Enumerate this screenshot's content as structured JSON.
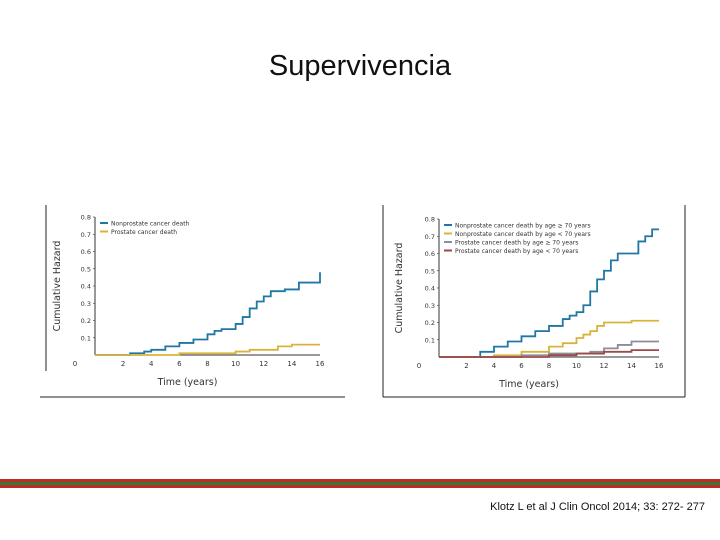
{
  "slide": {
    "title": "Supervivencia",
    "citation": "Klotz L et al J Clin Oncol 2014; 33: 272- 277"
  },
  "colors": {
    "nonprostate": "#1f77a4",
    "prostate": "#d9b33c",
    "prostate_old": "#8c8c9a",
    "prostate_young": "#9b4a4a",
    "stripe_green": "#2e7d32",
    "stripe_red": "#c62828"
  },
  "chart_data": [
    {
      "type": "line",
      "title": "",
      "xlabel": "Time (years)",
      "ylabel": "Cumulative Hazard",
      "xlim": [
        0,
        16
      ],
      "ylim": [
        0,
        0.8
      ],
      "xticks": [
        "0",
        "2",
        "4",
        "6",
        "8",
        "10",
        "12",
        "14",
        "16"
      ],
      "yticks": [
        "0.1",
        "0.2",
        "0.3",
        "0.4",
        "0.5",
        "0.6",
        "0.7",
        "0.8"
      ],
      "legend_position": "top-left",
      "series": [
        {
          "name": "Nonprostate cancer death",
          "color": "#1f77a4",
          "points": [
            [
              0,
              0
            ],
            [
              2,
              0
            ],
            [
              2.5,
              0.01
            ],
            [
              3.5,
              0.02
            ],
            [
              4,
              0.03
            ],
            [
              5,
              0.05
            ],
            [
              6,
              0.07
            ],
            [
              7,
              0.09
            ],
            [
              8,
              0.12
            ],
            [
              8.5,
              0.14
            ],
            [
              9,
              0.15
            ],
            [
              10,
              0.18
            ],
            [
              10.5,
              0.22
            ],
            [
              11,
              0.27
            ],
            [
              11.5,
              0.31
            ],
            [
              12,
              0.34
            ],
            [
              12.5,
              0.37
            ],
            [
              13,
              0.37
            ],
            [
              13.5,
              0.38
            ],
            [
              14,
              0.38
            ],
            [
              14.5,
              0.42
            ],
            [
              15.5,
              0.42
            ],
            [
              16,
              0.42
            ],
            [
              16,
              0.48
            ]
          ]
        },
        {
          "name": "Prostate cancer death",
          "color": "#d9b33c",
          "points": [
            [
              0,
              0
            ],
            [
              2,
              0
            ],
            [
              4,
              0
            ],
            [
              6,
              0.01
            ],
            [
              8,
              0.01
            ],
            [
              10,
              0.02
            ],
            [
              11,
              0.03
            ],
            [
              12,
              0.03
            ],
            [
              13,
              0.05
            ],
            [
              14,
              0.06
            ],
            [
              16,
              0.06
            ]
          ]
        }
      ]
    },
    {
      "type": "line",
      "title": "",
      "xlabel": "Time (years)",
      "ylabel": "Cumulative Hazard",
      "xlim": [
        0,
        16
      ],
      "ylim": [
        0,
        0.8
      ],
      "xticks": [
        "0",
        "2",
        "4",
        "6",
        "8",
        "10",
        "12",
        "14",
        "16"
      ],
      "yticks": [
        "0.1",
        "0.2",
        "0.3",
        "0.4",
        "0.5",
        "0.6",
        "0.7",
        "0.8"
      ],
      "legend_position": "top-left",
      "series": [
        {
          "name": "Nonprostate cancer death by age ≥ 70 years",
          "color": "#1f77a4",
          "points": [
            [
              0,
              0
            ],
            [
              2,
              0
            ],
            [
              3,
              0.03
            ],
            [
              4,
              0.06
            ],
            [
              5,
              0.09
            ],
            [
              6,
              0.12
            ],
            [
              7,
              0.15
            ],
            [
              8,
              0.18
            ],
            [
              9,
              0.22
            ],
            [
              9.5,
              0.24
            ],
            [
              10,
              0.26
            ],
            [
              10.5,
              0.3
            ],
            [
              11,
              0.38
            ],
            [
              11.5,
              0.45
            ],
            [
              12,
              0.5
            ],
            [
              12.5,
              0.56
            ],
            [
              13,
              0.6
            ],
            [
              14,
              0.6
            ],
            [
              14.5,
              0.67
            ],
            [
              15,
              0.7
            ],
            [
              15.5,
              0.74
            ],
            [
              16,
              0.74
            ]
          ]
        },
        {
          "name": "Nonprostate cancer death by age < 70 years",
          "color": "#d9b33c",
          "points": [
            [
              0,
              0
            ],
            [
              2,
              0
            ],
            [
              4,
              0.01
            ],
            [
              6,
              0.03
            ],
            [
              8,
              0.06
            ],
            [
              9,
              0.08
            ],
            [
              10,
              0.11
            ],
            [
              10.5,
              0.13
            ],
            [
              11,
              0.15
            ],
            [
              11.5,
              0.18
            ],
            [
              12,
              0.2
            ],
            [
              14,
              0.21
            ],
            [
              16,
              0.21
            ]
          ]
        },
        {
          "name": "Prostate cancer death by age ≥ 70 years",
          "color": "#8c8c9a",
          "points": [
            [
              0,
              0
            ],
            [
              2,
              0
            ],
            [
              6,
              0.01
            ],
            [
              8,
              0.02
            ],
            [
              10,
              0.02
            ],
            [
              11,
              0.03
            ],
            [
              12,
              0.05
            ],
            [
              13,
              0.07
            ],
            [
              14,
              0.09
            ],
            [
              16,
              0.09
            ]
          ]
        },
        {
          "name": "Prostate cancer death by age < 70 years",
          "color": "#9b4a4a",
          "points": [
            [
              0,
              0
            ],
            [
              2,
              0
            ],
            [
              6,
              0
            ],
            [
              8,
              0.01
            ],
            [
              10,
              0.02
            ],
            [
              12,
              0.03
            ],
            [
              14,
              0.04
            ],
            [
              16,
              0.04
            ]
          ]
        }
      ]
    }
  ]
}
